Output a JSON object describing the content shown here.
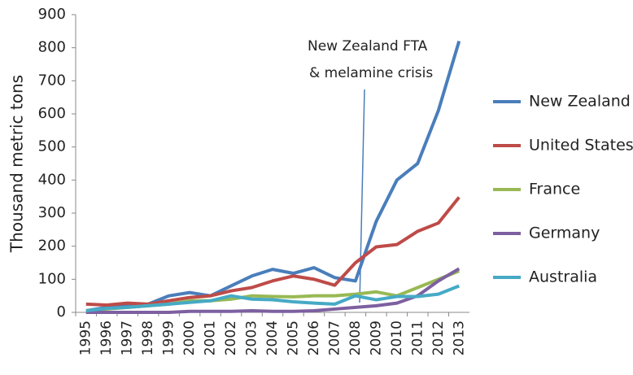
{
  "chart_data": {
    "type": "line",
    "ylabel": "Thousand metric tons",
    "annotation": [
      "New Zealand FTA",
      "& melamine crisis"
    ],
    "categories": [
      "1995",
      "1996",
      "1997",
      "1998",
      "1999",
      "2000",
      "2001",
      "2002",
      "2003",
      "2004",
      "2005",
      "2006",
      "2007",
      "2008",
      "2009",
      "2010",
      "2011",
      "2012",
      "2013"
    ],
    "series": [
      {
        "name": "New Zealand",
        "color": "#4a7ebb",
        "values": [
          5,
          15,
          20,
          25,
          50,
          60,
          50,
          80,
          110,
          130,
          118,
          135,
          105,
          95,
          275,
          400,
          450,
          610,
          820
        ]
      },
      {
        "name": "United States",
        "color": "#be4b48",
        "values": [
          25,
          22,
          28,
          25,
          35,
          45,
          50,
          65,
          75,
          95,
          110,
          100,
          82,
          150,
          198,
          205,
          245,
          270,
          348
        ]
      },
      {
        "name": "France",
        "color": "#98b954",
        "values": [
          5,
          10,
          15,
          20,
          25,
          35,
          35,
          40,
          50,
          48,
          47,
          50,
          50,
          55,
          62,
          50,
          75,
          100,
          125
        ]
      },
      {
        "name": "Germany",
        "color": "#7d60a0",
        "values": [
          0,
          0,
          0,
          0,
          0,
          3,
          3,
          3,
          5,
          3,
          3,
          5,
          10,
          15,
          20,
          28,
          50,
          95,
          132
        ]
      },
      {
        "name": "Australia",
        "color": "#46aac5",
        "values": [
          5,
          12,
          15,
          20,
          25,
          30,
          35,
          50,
          40,
          38,
          32,
          28,
          25,
          50,
          38,
          48,
          48,
          55,
          80
        ]
      }
    ],
    "ylim": [
      0,
      900
    ],
    "yticks": [
      0,
      100,
      200,
      300,
      400,
      500,
      600,
      700,
      800,
      900
    ],
    "grid": false,
    "legend": "right"
  }
}
